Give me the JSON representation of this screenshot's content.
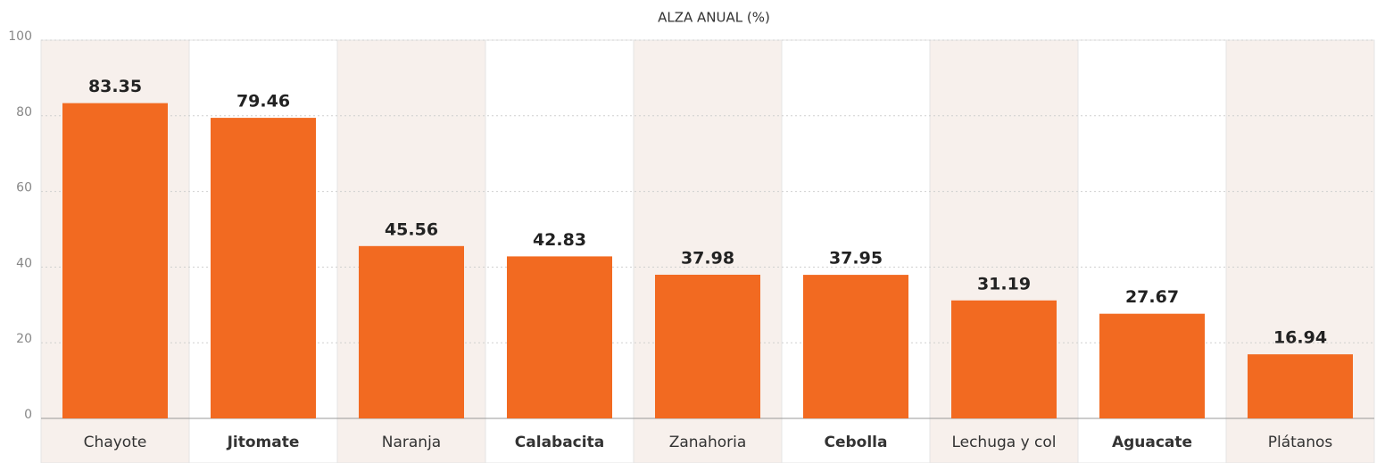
{
  "chart_data": {
    "type": "bar",
    "title": "ALZA ANUAL (%)",
    "categories": [
      "Chayote",
      "Jitomate",
      "Naranja",
      "Calabacita",
      "Zanahoria",
      "Cebolla",
      "Lechuga y col",
      "Aguacate",
      "Plátanos"
    ],
    "values": [
      83.35,
      79.46,
      45.56,
      42.83,
      37.98,
      37.95,
      31.19,
      27.67,
      16.94
    ],
    "color": "#f26a21",
    "ylim": [
      0,
      100
    ],
    "yticks": [
      0,
      20,
      40,
      60,
      80,
      100
    ],
    "grid": true
  }
}
